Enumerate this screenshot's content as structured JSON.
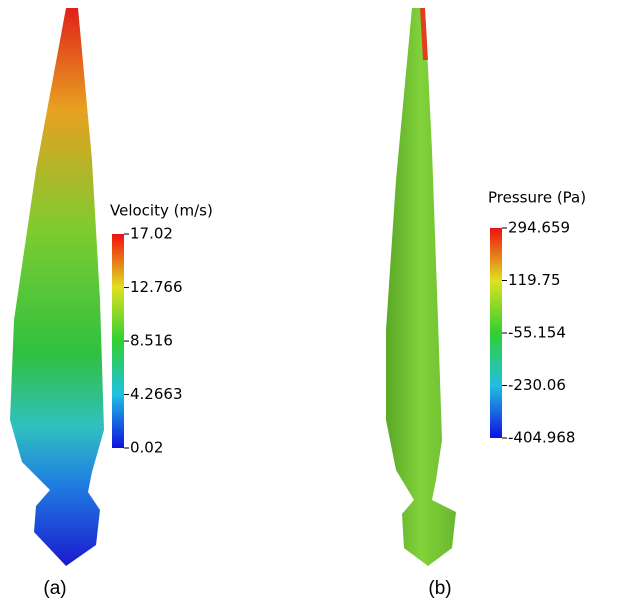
{
  "panels": [
    {
      "caption": "(a)",
      "colorbar": {
        "title": "Velocity (m/s)",
        "range": [
          0.02,
          17.02
        ],
        "ticks": [
          17.02,
          12.766,
          8.516,
          4.2663,
          0.02
        ]
      }
    },
    {
      "caption": "(b)",
      "colorbar": {
        "title": "Pressure (Pa)",
        "range": [
          -404.968,
          294.659
        ],
        "ticks": [
          294.659,
          119.75,
          -55.154,
          -230.06,
          -404.968
        ]
      }
    }
  ]
}
